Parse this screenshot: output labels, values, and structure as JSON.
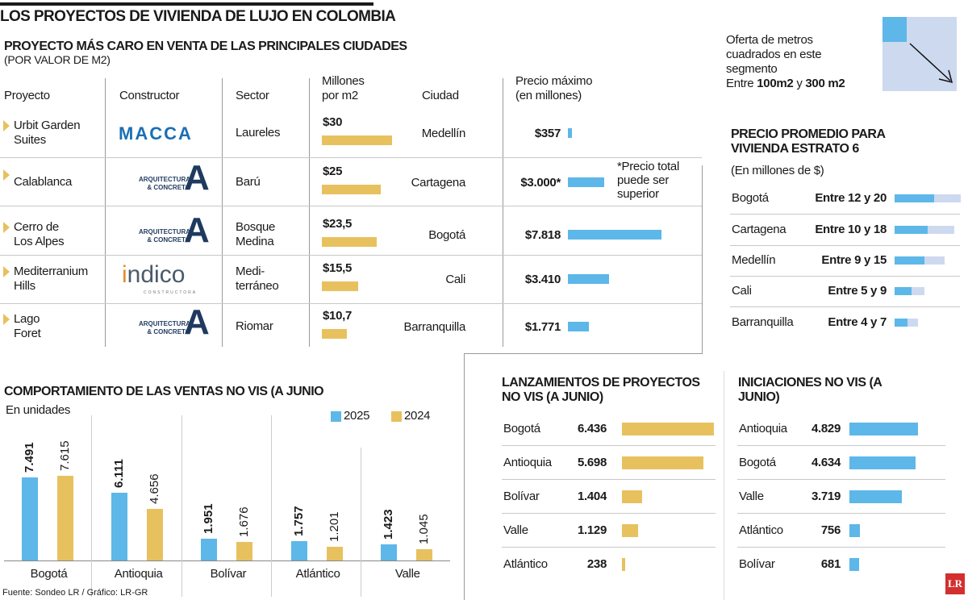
{
  "title": "LOS PROYECTOS DE VIVIENDA DE LUJO EN COLOMBIA",
  "colors": {
    "blue": "#5db7e8",
    "gold": "#e8c15f",
    "light_blue": "#cdd9ef",
    "lr_red": "#d32f2f"
  },
  "projects": {
    "title": "PROYECTO MÁS CARO EN VENTA DE LAS PRINCIPALES CIUDADES",
    "subtitle": "(POR VALOR DE M2)",
    "headers": {
      "project": "Proyecto",
      "builder": "Constructor",
      "sector": "Sector",
      "m2_1": "Millones",
      "m2_2": "por m2",
      "city": "Ciudad",
      "price_1": "Precio máximo",
      "price_2": "(en millones)"
    },
    "note": [
      "*Precio total",
      "puede ser",
      "superior"
    ],
    "rows": [
      {
        "project": [
          "Urbit Garden",
          "Suites"
        ],
        "builder": "MACCA",
        "builder_logo": "macca",
        "sector": [
          "Laureles"
        ],
        "m2_label": "$30",
        "m2": 30,
        "city": "Medellín",
        "price_label": "$357",
        "price": 357
      },
      {
        "project": [
          "Calablanca"
        ],
        "builder": "ARQUITECTURA & CONCRETO",
        "builder_logo": "ayc",
        "sector": [
          "Barú"
        ],
        "m2_label": "$25",
        "m2": 25,
        "city": "Cartagena",
        "price_label": "$3.000*",
        "price": 3000
      },
      {
        "project": [
          "Cerro de",
          "Los Alpes"
        ],
        "builder": "ARQUITECTURA & CONCRETO",
        "builder_logo": "ayc",
        "sector": [
          "Bosque",
          "Medina"
        ],
        "m2_label": "$23,5",
        "m2": 23.5,
        "city": "Bogotá",
        "price_label": "$7.818",
        "price": 7818
      },
      {
        "project": [
          "Mediterranium",
          "Hills"
        ],
        "builder": "indico CONSTRUCTORA",
        "builder_logo": "indico",
        "sector": [
          "Medi-",
          "terráneo"
        ],
        "m2_label": "$15,5",
        "m2": 15.5,
        "city": "Cali",
        "price_label": "$3.410",
        "price": 3410
      },
      {
        "project": [
          "Lago",
          "Foret"
        ],
        "builder": "ARQUITECTURA & CONCRETO",
        "builder_logo": "ayc",
        "sector": [
          "Riomar"
        ],
        "m2_label": "$10,7",
        "m2": 10.7,
        "city": "Barranquilla",
        "price_label": "$1.771",
        "price": 1771
      }
    ]
  },
  "offer": {
    "lines": [
      "Oferta de metros",
      "cuadrados en este",
      "segmento"
    ],
    "pre": "Entre ",
    "a": "100m2",
    "mid": " y ",
    "b": "300 m2"
  },
  "chart_data": [
    {
      "type": "bar",
      "title": "PRECIO PROMEDIO PARA VIVIENDA ESTRATO 6",
      "subtitle": "(En millones de $)",
      "categories": [
        "Bogotá",
        "Cartagena",
        "Medellín",
        "Cali",
        "Barranquilla"
      ],
      "labels": [
        "Entre 12 y 20",
        "Entre 10 y 18",
        "Entre 9 y 15",
        "Entre 5 y 9",
        "Entre 4 y 7"
      ],
      "min": [
        12,
        10,
        9,
        5,
        4
      ],
      "max": [
        20,
        18,
        15,
        9,
        7
      ]
    },
    {
      "type": "bar",
      "title": "COMPORTAMIENTO DE LAS VENTAS NO VIS (A JUNIO",
      "subtitle": "En unidades",
      "categories": [
        "Bogotá",
        "Antioquia",
        "Bolívar",
        "Atlántico",
        "Valle"
      ],
      "series": [
        {
          "name": "2025",
          "values": [
            7491,
            6111,
            1951,
            1757,
            1423
          ],
          "labels": [
            "7.491",
            "6.111",
            "1.951",
            "1.757",
            "1.423"
          ]
        },
        {
          "name": "2024",
          "values": [
            7615,
            4656,
            1676,
            1201,
            1045
          ],
          "labels": [
            "7.615",
            "4.656",
            "1.676",
            "1.201",
            "1.045"
          ]
        }
      ],
      "legend": "top-right",
      "source": "Fuente: Sondeo LR / Gráfico: LR-GR"
    },
    {
      "type": "bar",
      "title": "LANZAMIENTOS DE PROYECTOS NO VIS (A JUNIO)",
      "categories": [
        "Bogotá",
        "Antioquia",
        "Bolívar",
        "Valle",
        "Atlántico"
      ],
      "values": [
        6436,
        5698,
        1404,
        1129,
        238
      ],
      "labels": [
        "6.436",
        "5.698",
        "1.404",
        "1.129",
        "238"
      ]
    },
    {
      "type": "bar",
      "title": "INICIACIONES NO VIS (A JUNIO)",
      "categories": [
        "Antioquia",
        "Bogotá",
        "Valle",
        "Atlántico",
        "Bolívar"
      ],
      "values": [
        4829,
        4634,
        3719,
        756,
        681
      ],
      "labels": [
        "4.829",
        "4.634",
        "3.719",
        "756",
        "681"
      ]
    }
  ],
  "logo": "LR"
}
